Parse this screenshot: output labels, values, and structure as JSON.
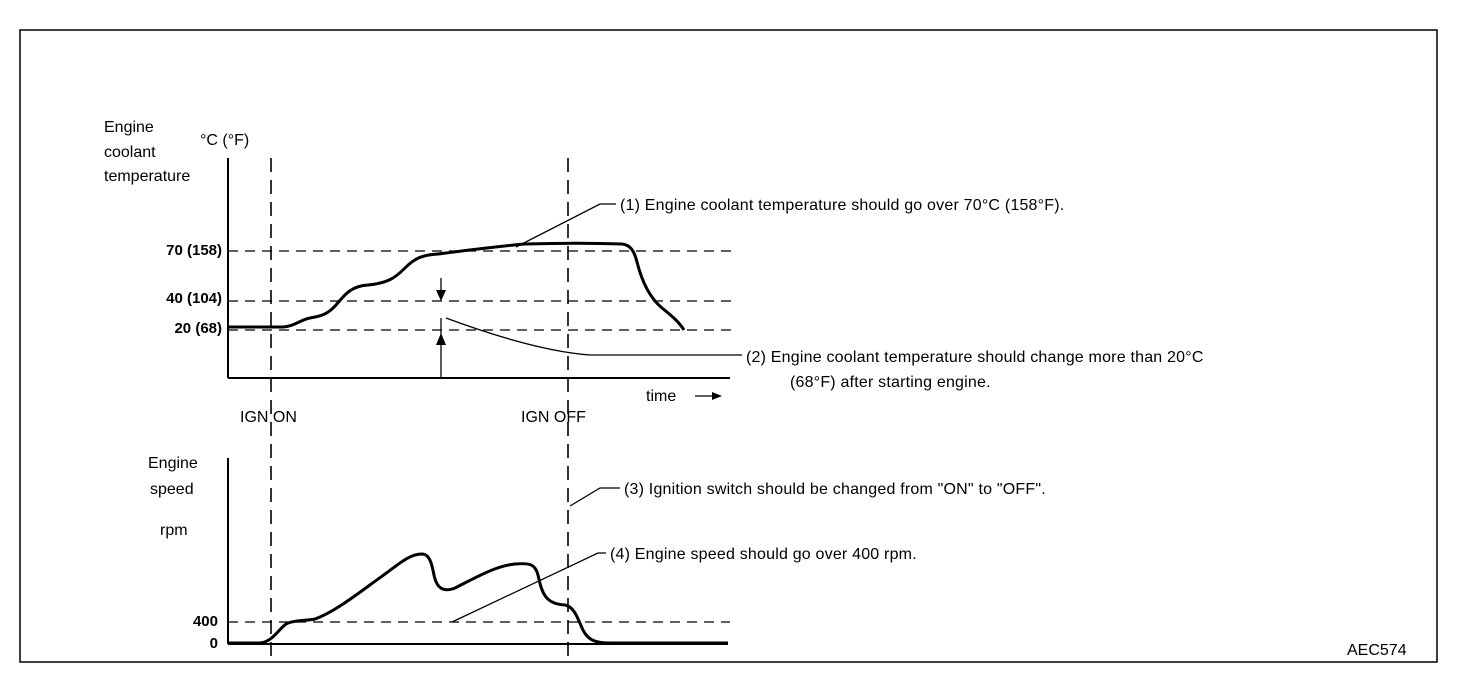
{
  "top_chart": {
    "y_label_lines": [
      "Engine",
      "coolant",
      "temperature"
    ],
    "unit": "°C (°F)",
    "ticks": [
      "70 (158)",
      "40 (104)",
      "20 (68)"
    ],
    "x_label": "time",
    "x_arrow": "→"
  },
  "events": {
    "ign_on": "IGN ON",
    "ign_off": "IGN OFF"
  },
  "bottom_chart": {
    "y_label_lines": [
      "Engine",
      "speed"
    ],
    "unit": "rpm",
    "ticks": [
      "400",
      "0"
    ]
  },
  "notes": {
    "n1": "(1)   Engine coolant temperature should go over 70°C (158°F).",
    "n2_line1": "(2)   Engine coolant temperature should change more than 20°C",
    "n2_line2": "(68°F) after starting engine.",
    "n3": "(3)   Ignition switch should be changed from \"ON\" to \"OFF\".",
    "n4": "(4)   Engine speed should go over 400 rpm."
  },
  "figure_code": "AEC574"
}
